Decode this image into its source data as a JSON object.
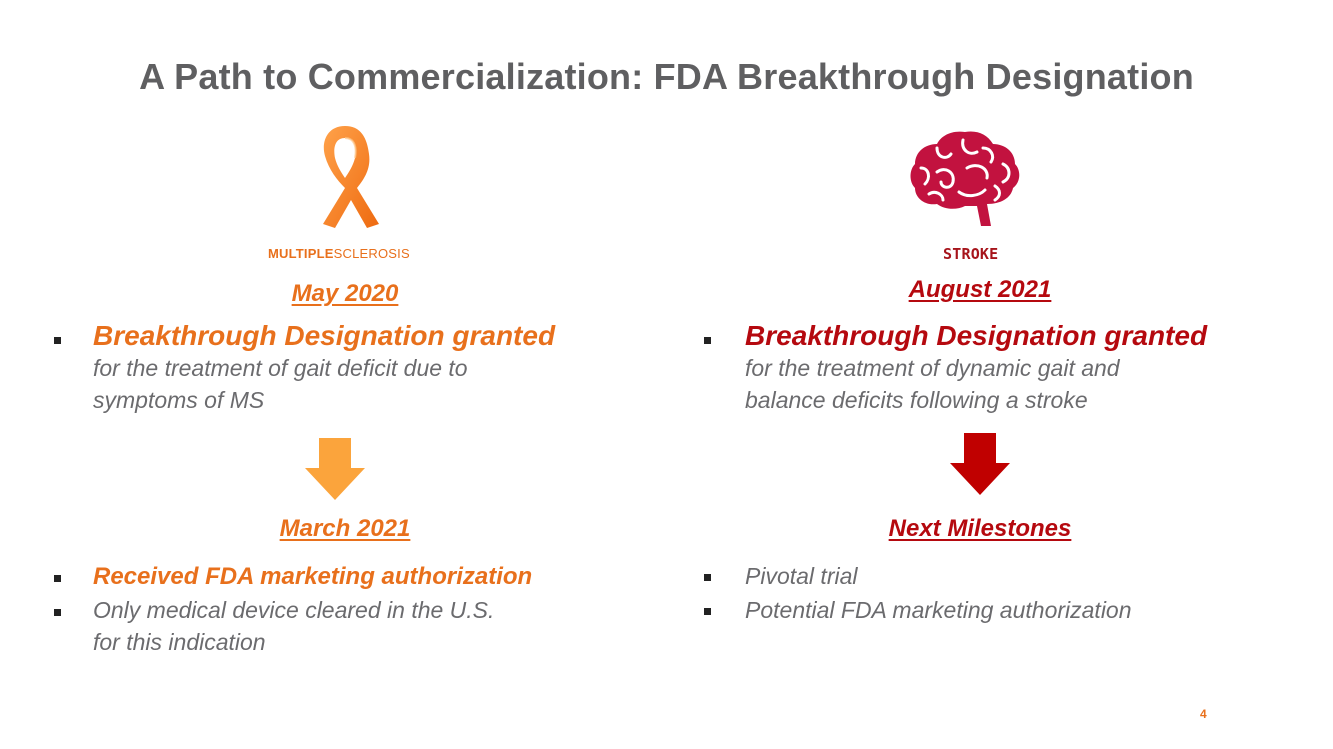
{
  "slide": {
    "title": "A Path to Commercialization: FDA Breakthrough Designation",
    "page_number": "4"
  },
  "left": {
    "icon": "orange-ribbon-icon",
    "label_bold": "MULTIPLE",
    "label_light": "SCLEROSIS",
    "date1": "May 2020",
    "designation_head": "Breakthrough Designation granted",
    "designation_sub_1": "for the treatment of gait deficit due to",
    "designation_sub_2": "symptoms of MS",
    "date2": "March 2021",
    "items": [
      {
        "text": "Received FDA marketing authorization"
      },
      {
        "text_1": "Only medical device cleared in the U.S.",
        "text_2": "for this indication"
      }
    ],
    "color": "#e8701c",
    "arrow_color": "#fba43c"
  },
  "right": {
    "icon": "brain-icon",
    "label": "STROKE",
    "date1": "August 2021",
    "designation_head": "Breakthrough Designation granted",
    "designation_sub_1": "for the treatment of dynamic gait and",
    "designation_sub_2": "balance deficits following a stroke",
    "date2": "Next Milestones",
    "items": [
      {
        "text": "Pivotal trial"
      },
      {
        "text": "Potential FDA marketing authorization"
      }
    ],
    "color": "#b5090f",
    "arrow_color": "#c00000"
  }
}
